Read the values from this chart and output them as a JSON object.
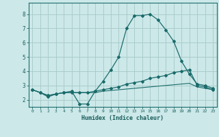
{
  "xlabel": "Humidex (Indice chaleur)",
  "background_color": "#cce8e8",
  "grid_color": "#aacccc",
  "line_color": "#1a6b6b",
  "x_values": [
    0,
    1,
    2,
    3,
    4,
    5,
    6,
    7,
    8,
    9,
    10,
    11,
    12,
    13,
    14,
    15,
    16,
    17,
    18,
    19,
    20,
    21,
    22,
    23
  ],
  "line1": [
    2.7,
    2.5,
    2.2,
    2.4,
    2.5,
    2.6,
    1.7,
    1.7,
    2.6,
    3.3,
    4.1,
    5.0,
    7.0,
    7.9,
    7.9,
    8.0,
    7.6,
    6.9,
    6.1,
    4.7,
    3.8,
    3.1,
    3.0,
    2.8
  ],
  "line2": [
    2.7,
    2.5,
    2.3,
    2.4,
    2.5,
    2.5,
    2.5,
    2.5,
    2.6,
    2.7,
    2.8,
    2.9,
    3.1,
    3.2,
    3.3,
    3.5,
    3.6,
    3.7,
    3.9,
    4.0,
    4.1,
    3.0,
    2.9,
    2.7
  ],
  "line3": [
    2.7,
    2.5,
    2.3,
    2.4,
    2.5,
    2.5,
    2.5,
    2.5,
    2.5,
    2.6,
    2.65,
    2.7,
    2.75,
    2.8,
    2.85,
    2.9,
    2.95,
    3.0,
    3.05,
    3.1,
    3.15,
    2.9,
    2.8,
    2.7
  ],
  "ylim": [
    1.5,
    8.8
  ],
  "xlim": [
    -0.5,
    23.5
  ],
  "yticks": [
    2,
    3,
    4,
    5,
    6,
    7,
    8
  ],
  "xticks": [
    0,
    1,
    2,
    3,
    4,
    5,
    6,
    7,
    8,
    9,
    10,
    11,
    12,
    13,
    14,
    15,
    16,
    17,
    18,
    19,
    20,
    21,
    22,
    23
  ]
}
